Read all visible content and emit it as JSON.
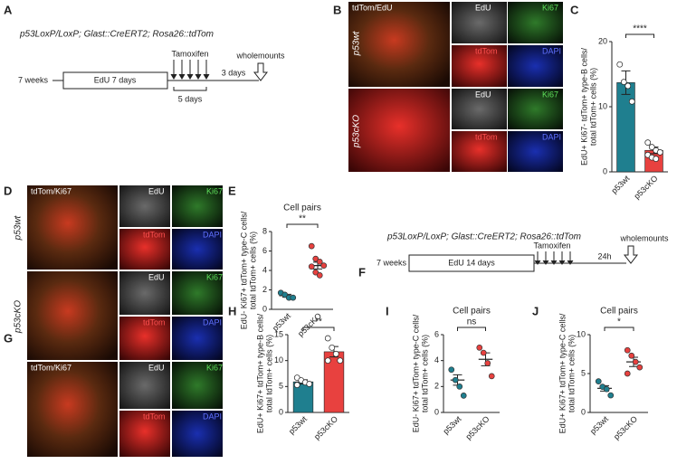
{
  "panels": {
    "letters": [
      "A",
      "B",
      "C",
      "D",
      "E",
      "F",
      "G",
      "H",
      "I",
      "J"
    ],
    "timeline_a": {
      "genotype": "p53LoxP/LoxP; Glast::CreERT2; Rosa26::tdTom",
      "start": "7 weeks",
      "edu": "EdU 7 days",
      "tamoxifen": "Tamoxifen",
      "tam_duration": "5 days",
      "chase": "3 days",
      "end": "wholemounts"
    },
    "timeline_f": {
      "genotype": "p53LoxP/LoxP; Glast::CreERT2; Rosa26::tdTom",
      "start": "7 weeks",
      "edu": "EdU 14 days",
      "tamoxifen": "Tamoxifen",
      "chase": "24h",
      "end": "wholemounts"
    },
    "images_b": {
      "merge": "tdTom/EdU",
      "edu": "EdU",
      "ki67": "Ki67",
      "tdtom": "tdTom",
      "dapi": "DAPI",
      "row1": "p53wt",
      "row2": "p53cKO"
    },
    "images_d": {
      "merge": "tdTom/Ki67",
      "edu": "EdU",
      "ki67": "Ki67",
      "tdtom": "tdTom",
      "dapi": "DAPI",
      "row1": "p53wt",
      "row2": "p53cKO"
    },
    "images_g": {
      "merge": "tdTom/Ki67",
      "edu": "EdU",
      "ki67": "Ki67",
      "tdtom": "tdTom",
      "dapi": "DAPI"
    }
  },
  "chart_data": [
    {
      "type": "bar",
      "ylabel": [
        "EdU+ Ki67- tdTom+ type-B cells/",
        "total tdTom+ cells (%)"
      ],
      "categories": [
        "p53wt",
        "p53cKO"
      ],
      "colors": [
        "#1f7f8f",
        "#e8413f"
      ],
      "points": [
        [
          16.5,
          13.8,
          13.2,
          10.8
        ],
        [
          4.5,
          3.8,
          3.3,
          3.0,
          2.6,
          2.2,
          2.0
        ]
      ],
      "mean": [
        13.7,
        3.3
      ],
      "sem": [
        1.8,
        0.5
      ],
      "ylim": [
        0,
        20
      ],
      "yticks": [
        0,
        10,
        20
      ],
      "significance": "****"
    },
    {
      "type": "dot",
      "title": "Cell pairs",
      "ylabel": [
        "EdU- Ki67+ tdTom+ type-C cells/",
        "total tdTom+ cells (%)"
      ],
      "categories": [
        "p53wt",
        "p53cKO"
      ],
      "colors": [
        "#1f7f8f",
        "#e8413f"
      ],
      "points": [
        [
          1.7,
          1.5,
          1.2,
          1.2
        ],
        [
          6.5,
          5.2,
          4.9,
          4.5,
          4.4,
          3.8,
          3.5
        ]
      ],
      "mean": [
        1.4,
        4.5
      ],
      "sem": [
        0.15,
        0.35
      ],
      "ylim": [
        0,
        8
      ],
      "yticks": [
        0,
        2,
        4,
        6,
        8
      ],
      "significance": "**"
    },
    {
      "type": "bar",
      "ylabel": [
        "EdU+ Ki67+ tdTom+ type-B cells/",
        "total tdTom+ cells (%)"
      ],
      "categories": [
        "p53wt",
        "p53cKO"
      ],
      "colors": [
        "#1f7f8f",
        "#e8413f"
      ],
      "points": [
        [
          6.7,
          6.2,
          5.8,
          5.5,
          5.3
        ],
        [
          14.3,
          12.5,
          11.3,
          10.0,
          10.0
        ]
      ],
      "mean": [
        5.9,
        11.7
      ],
      "sem": [
        0.4,
        1.0
      ],
      "ylim": [
        0,
        15
      ],
      "yticks": [
        0,
        5,
        10,
        15
      ],
      "significance": "**"
    },
    {
      "type": "dot",
      "title": "Cell pairs",
      "ylabel": [
        "EdU- Ki67+ tdTom+ type-C cells/",
        "total tdTom+ cells (%)"
      ],
      "categories": [
        "p53wt",
        "p53cKO"
      ],
      "colors": [
        "#1f7f8f",
        "#e8413f"
      ],
      "points": [
        [
          3.3,
          2.5,
          2.0,
          1.3
        ],
        [
          5.0,
          4.6,
          3.8,
          2.8
        ]
      ],
      "mean": [
        2.5,
        4.1
      ],
      "sem": [
        0.4,
        0.5
      ],
      "ylim": [
        0,
        6
      ],
      "yticks": [
        0,
        2,
        4,
        6
      ],
      "significance": "ns"
    },
    {
      "type": "dot",
      "title": "Cell pairs",
      "ylabel": [
        "EdU+ Ki67+ tdTom+ type-C cells/",
        "total tdTom+ cells (%)"
      ],
      "categories": [
        "p53wt",
        "p53cKO"
      ],
      "colors": [
        "#1f7f8f",
        "#e8413f"
      ],
      "points": [
        [
          4.0,
          3.3,
          3.0,
          2.2
        ],
        [
          8.0,
          7.3,
          6.5,
          5.8,
          5.0
        ]
      ],
      "mean": [
        3.1,
        6.5
      ],
      "sem": [
        0.35,
        0.6
      ],
      "ylim": [
        0,
        10
      ],
      "yticks": [
        0,
        5,
        10
      ],
      "significance": "*"
    }
  ]
}
